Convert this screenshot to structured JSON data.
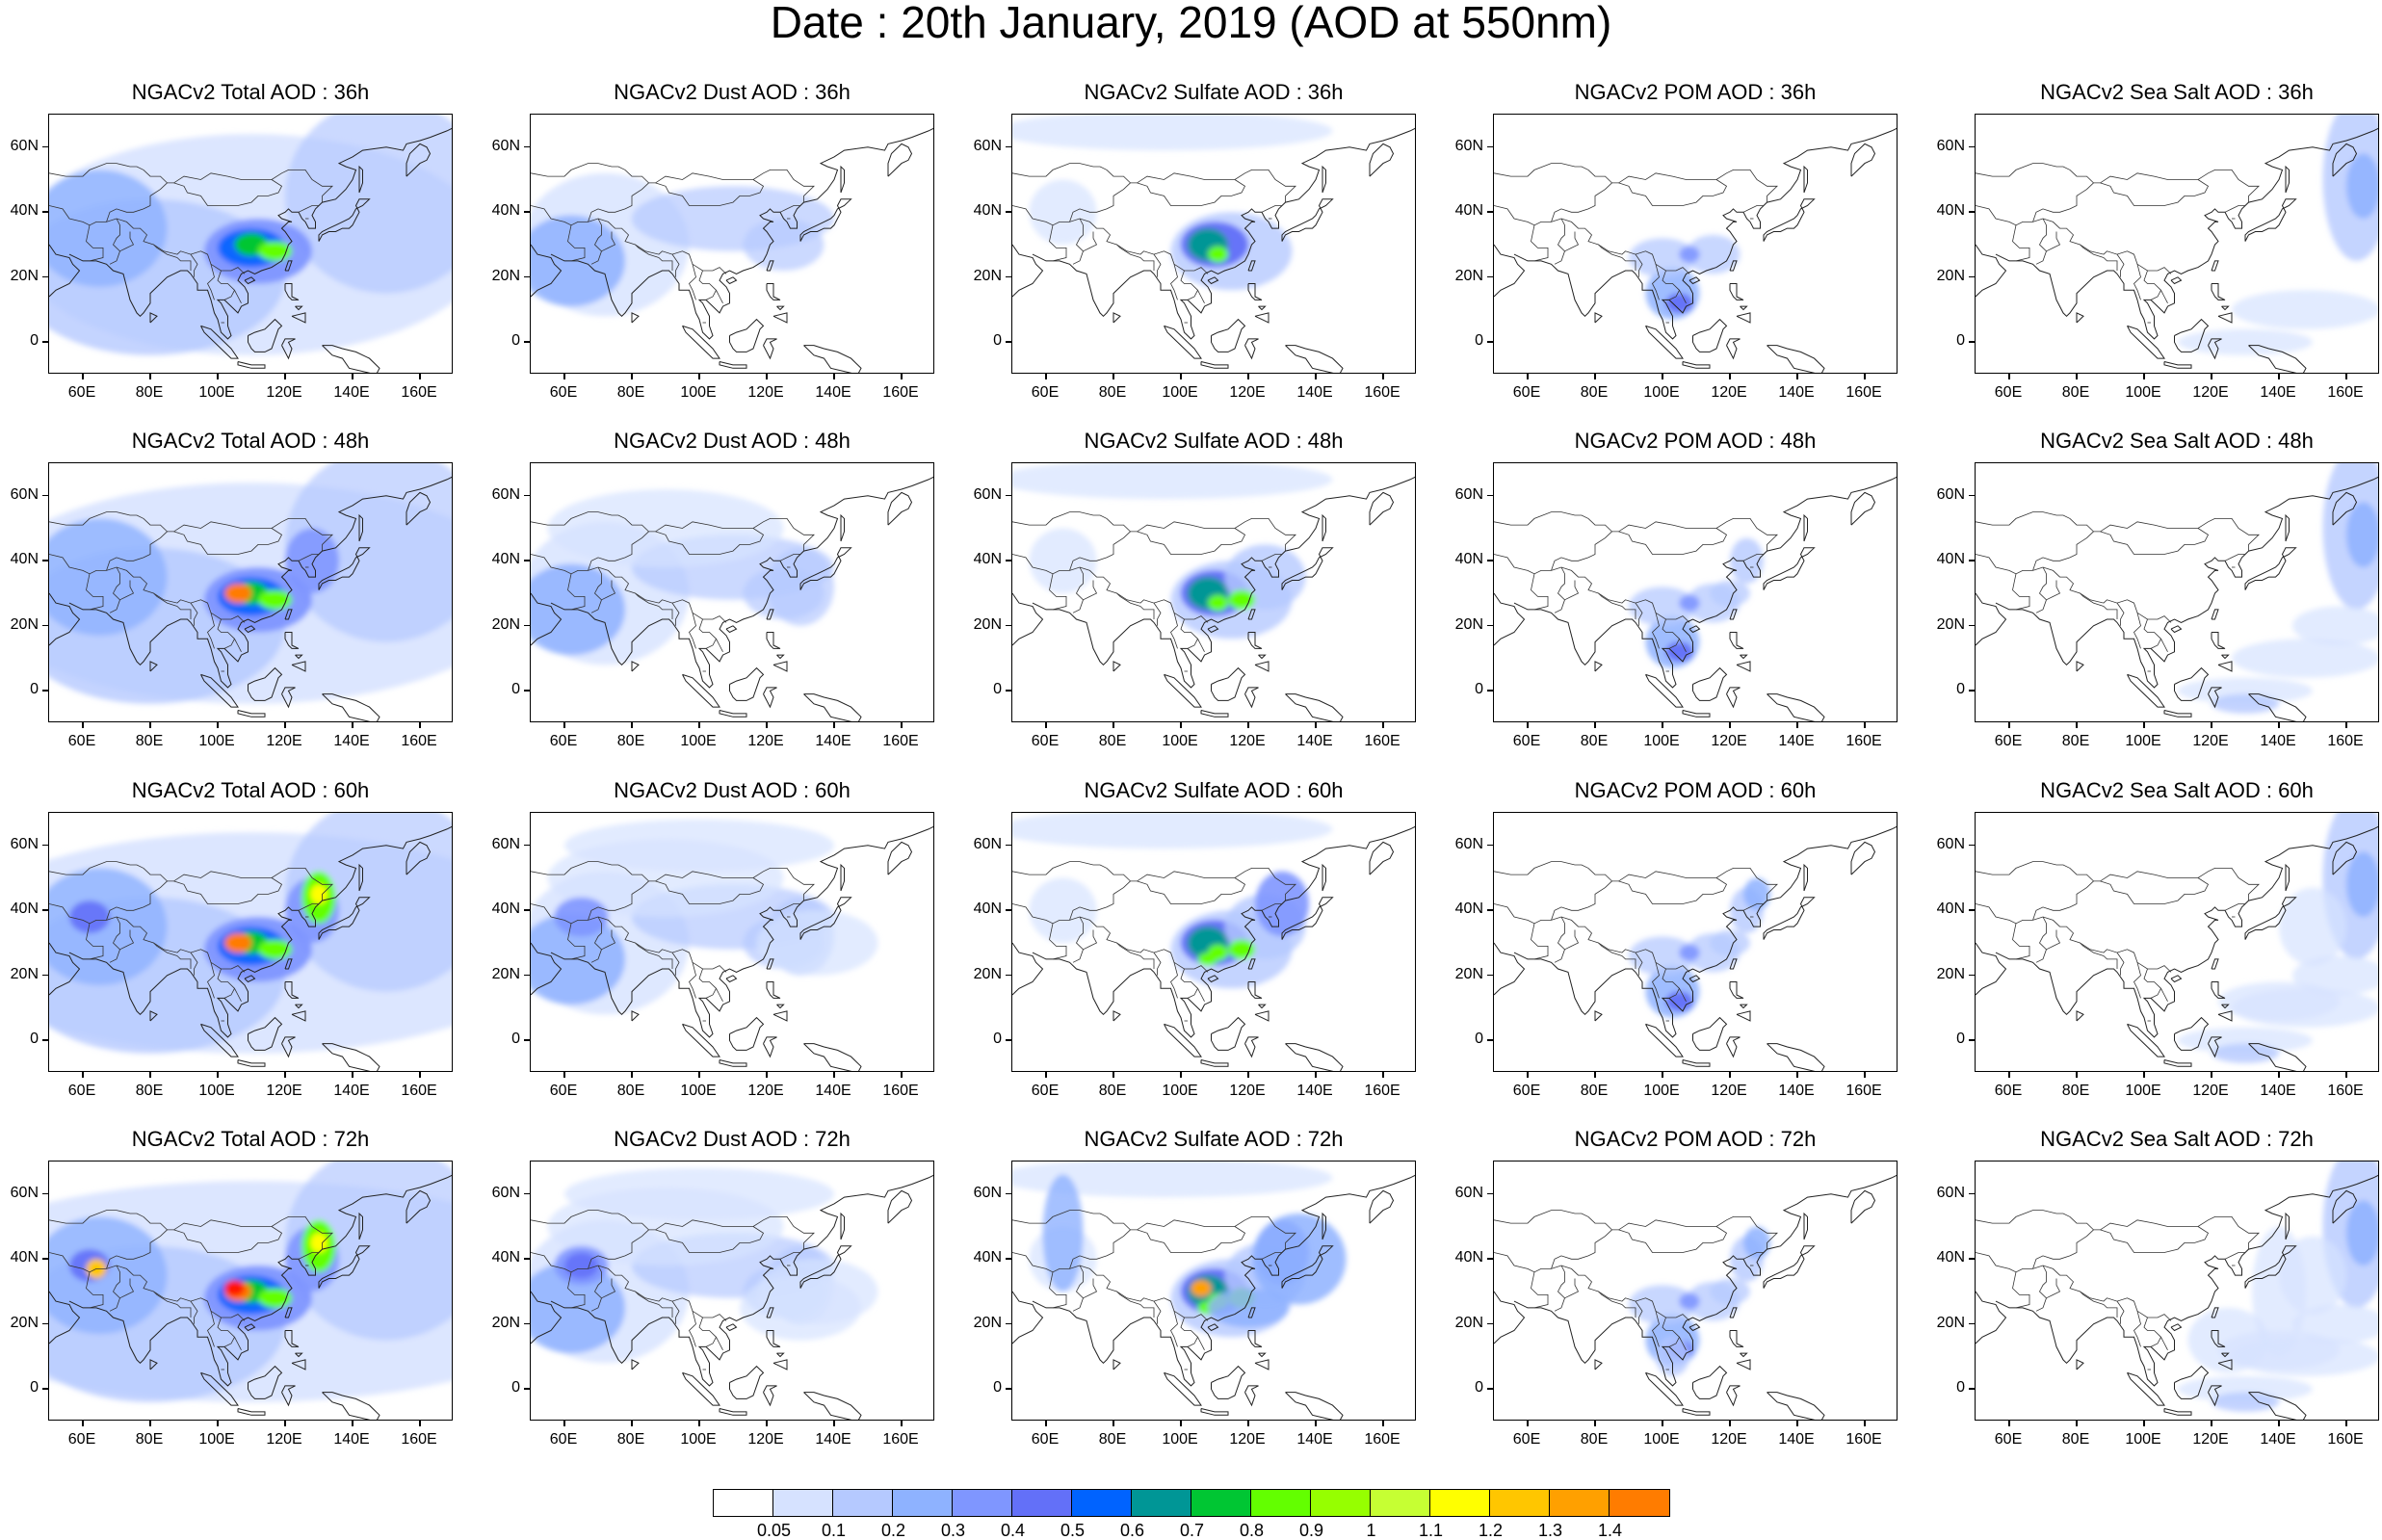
{
  "title": "Date : 20th January, 2019 (AOD at 550nm)",
  "x_ticks": [
    "60E",
    "80E",
    "100E",
    "120E",
    "140E",
    "160E"
  ],
  "y_ticks": [
    "60N",
    "40N",
    "20N",
    "0"
  ],
  "rows": [
    {
      "panels": [
        "NGACv2 Total AOD : 36h",
        "NGACv2 Dust AOD : 36h",
        "NGACv2 Sulfate AOD : 36h",
        "NGACv2 POM AOD : 36h",
        "NGACv2 Sea Salt AOD : 36h"
      ]
    },
    {
      "panels": [
        "NGACv2 Total AOD : 48h",
        "NGACv2 Dust AOD : 48h",
        "NGACv2 Sulfate AOD : 48h",
        "NGACv2 POM AOD : 48h",
        "NGACv2 Sea Salt AOD : 48h"
      ]
    },
    {
      "panels": [
        "NGACv2 Total AOD : 60h",
        "NGACv2 Dust AOD : 60h",
        "NGACv2 Sulfate AOD : 60h",
        "NGACv2 POM AOD : 60h",
        "NGACv2 Sea Salt AOD : 60h"
      ]
    },
    {
      "panels": [
        "NGACv2 Total AOD : 72h",
        "NGACv2 Dust AOD : 72h",
        "NGACv2 Sulfate AOD : 72h",
        "NGACv2 POM AOD : 72h",
        "NGACv2 Sea Salt  AOD : 72h"
      ]
    }
  ],
  "colorbar": {
    "labels": [
      "0.05",
      "0.1",
      "0.2",
      "0.3",
      "0.4",
      "0.5",
      "0.6",
      "0.7",
      "0.8",
      "0.9",
      "1",
      "1.1",
      "1.2",
      "1.3",
      "1.4"
    ],
    "colors": [
      "#ffffff",
      "#d6e2ff",
      "#b5c9ff",
      "#8eb2ff",
      "#7f96ff",
      "#6370f8",
      "#0063ff",
      "#009696",
      "#00c633",
      "#63ff00",
      "#96ff00",
      "#c6ff33",
      "#ffff00",
      "#ffc600",
      "#ffa000",
      "#ff7c00",
      "#ff1900"
    ]
  }
}
